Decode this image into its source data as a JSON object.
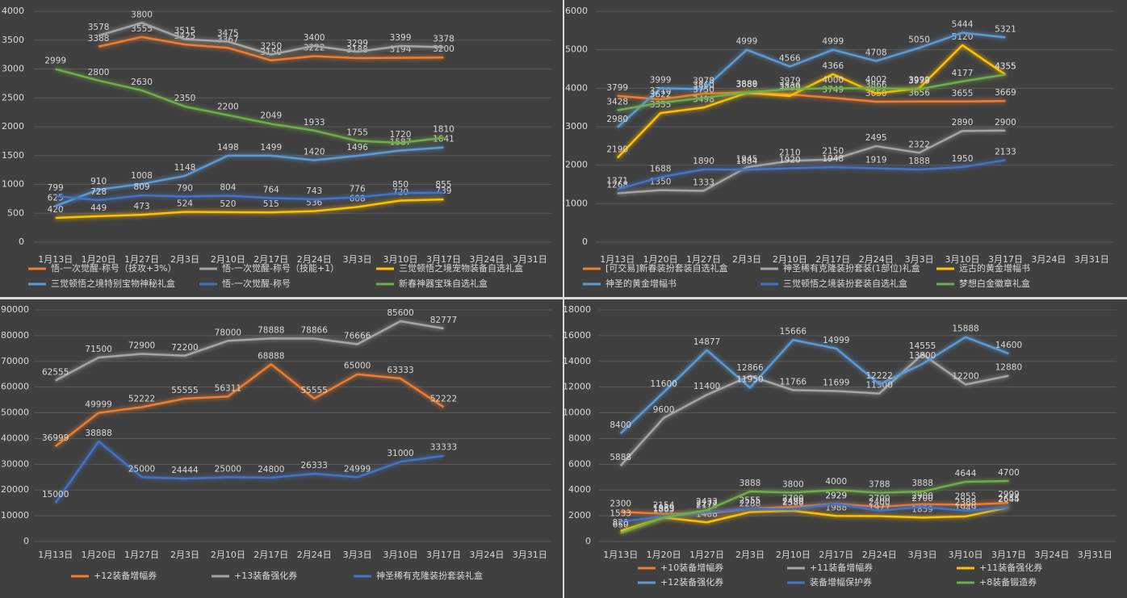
{
  "chart_data": [
    {
      "type": "line",
      "categories": [
        "1月13日",
        "1月20日",
        "1月27日",
        "2月3日",
        "2月10日",
        "2月17日",
        "2月24日",
        "3月3日",
        "3月10日",
        "3月17日",
        "3月24日",
        "3月31日"
      ],
      "ylim": [
        0,
        4000
      ],
      "yticks": [
        0,
        500,
        1000,
        1500,
        2000,
        2500,
        3000,
        3500,
        4000
      ],
      "grid": true,
      "series": [
        {
          "name": "悟-一次觉醒-称号（技攻+3%）",
          "color": "#ed7d31",
          "values": [
            null,
            3388,
            3555,
            3425,
            3367,
            3150,
            3222,
            3188,
            3194,
            3200,
            null,
            null
          ]
        },
        {
          "name": "悟-一次觉醒-称号（技能+1）",
          "color": "#a5a5a5",
          "values": [
            null,
            3578,
            3800,
            3515,
            3475,
            3250,
            3400,
            3299,
            3399,
            3378,
            null,
            null
          ]
        },
        {
          "name": "三觉顿悟之境宠物装备自选礼盒",
          "color": "#ffc000",
          "values": [
            420,
            449,
            473,
            524,
            520,
            515,
            536,
            608,
            720,
            739,
            null,
            null
          ]
        },
        {
          "name": "三觉顿悟之境特别宝物神秘礼盒",
          "color": "#5b9bd5",
          "values": [
            625,
            910,
            1008,
            1148,
            1498,
            1499,
            1420,
            1496,
            1587,
            1641,
            null,
            null
          ]
        },
        {
          "name": "悟-一次觉醒-称号",
          "color": "#4472c4",
          "values": [
            799,
            728,
            809,
            790,
            804,
            764,
            743,
            776,
            850,
            855,
            null,
            null
          ]
        },
        {
          "name": "新春神器宝珠自选礼盒",
          "color": "#70ad47",
          "values": [
            2999,
            2800,
            2630,
            2350,
            2200,
            2049,
            1933,
            1755,
            1720,
            1810,
            null,
            null
          ]
        }
      ]
    },
    {
      "type": "line",
      "categories": [
        "1月13日",
        "1月20日",
        "1月27日",
        "2月3日",
        "2月10日",
        "2月17日",
        "2月24日",
        "3月3日",
        "3月10日",
        "3月17日",
        "3月24日",
        "3月31日"
      ],
      "ylim": [
        0,
        6000
      ],
      "yticks": [
        0,
        1000,
        2000,
        3000,
        4000,
        5000,
        6000
      ],
      "grid": true,
      "series": [
        {
          "name": "[可交易]新春装扮套装自选礼盒",
          "color": "#ed7d31",
          "values": [
            3799,
            3710,
            3860,
            3888,
            3839,
            3749,
            3650,
            3656,
            3655,
            3669,
            null,
            null
          ]
        },
        {
          "name": "神圣稀有克隆装扮套装(1部位)礼盒",
          "color": "#a5a5a5",
          "values": [
            1268,
            1350,
            1333,
            1945,
            2110,
            2150,
            2495,
            2322,
            2890,
            2900,
            null,
            null
          ]
        },
        {
          "name": "远古的黄金增幅书",
          "color": "#ffc000",
          "values": [
            2190,
            3355,
            3498,
            3880,
            3799,
            4366,
            3866,
            3999,
            5120,
            4355,
            null,
            null
          ]
        },
        {
          "name": "神圣的黄金增幅书",
          "color": "#5b9bd5",
          "values": [
            2980,
            3999,
            3978,
            4999,
            4566,
            4999,
            4708,
            5050,
            5444,
            5321,
            null,
            null
          ]
        },
        {
          "name": "三觉顿悟之境装扮套装自选礼盒",
          "color": "#4472c4",
          "values": [
            1371,
            1688,
            1890,
            1884,
            1920,
            1948,
            1919,
            1888,
            1950,
            2133,
            null,
            null
          ]
        },
        {
          "name": "梦想白金徽章礼盒",
          "color": "#70ad47",
          "values": [
            3428,
            3622,
            3750,
            3889,
            3979,
            4000,
            4002,
            3979,
            4177,
            4355,
            null,
            null
          ]
        }
      ]
    },
    {
      "type": "line",
      "categories": [
        "1月13日",
        "1月20日",
        "1月27日",
        "2月3日",
        "2月10日",
        "2月17日",
        "2月24日",
        "3月3日",
        "3月10日",
        "3月17日",
        "3月24日",
        "3月31日"
      ],
      "ylim": [
        0,
        90000
      ],
      "yticks": [
        0,
        10000,
        20000,
        30000,
        40000,
        50000,
        60000,
        70000,
        80000,
        90000
      ],
      "grid": true,
      "series": [
        {
          "name": "+12装备增幅券",
          "color": "#ed7d31",
          "values": [
            36999,
            49999,
            52222,
            55555,
            56311,
            68888,
            55555,
            65000,
            63333,
            52222,
            null,
            null
          ]
        },
        {
          "name": "+13装备强化券",
          "color": "#a5a5a5",
          "values": [
            62555,
            71500,
            72900,
            72200,
            78000,
            78888,
            78866,
            76666,
            85600,
            82777,
            null,
            null
          ]
        },
        {
          "name": "神圣稀有克隆装扮套装礼盒",
          "color": "#4472c4",
          "values": [
            15000,
            38888,
            25000,
            24444,
            25000,
            24800,
            26333,
            24999,
            31000,
            33333,
            null,
            null
          ]
        }
      ]
    },
    {
      "type": "line",
      "categories": [
        "1月13日",
        "1月20日",
        "1月27日",
        "2月3日",
        "2月10日",
        "2月17日",
        "2月24日",
        "3月3日",
        "3月10日",
        "3月17日",
        "3月24日",
        "3月31日"
      ],
      "ylim": [
        0,
        18000
      ],
      "yticks": [
        0,
        2000,
        4000,
        6000,
        8000,
        10000,
        12000,
        14000,
        16000,
        18000
      ],
      "grid": true,
      "series": [
        {
          "name": "+10装备增幅券",
          "color": "#ed7d31",
          "values": [
            2300,
            2154,
            2178,
            2555,
            2700,
            2929,
            2700,
            2900,
            2855,
            2999,
            null,
            null
          ]
        },
        {
          "name": "+11装备增幅券",
          "color": "#a5a5a5",
          "values": [
            5888,
            9600,
            11400,
            12866,
            11766,
            11699,
            11500,
            14555,
            12200,
            12880,
            null,
            null
          ]
        },
        {
          "name": "+11装备强化券",
          "color": "#ffc000",
          "values": [
            820,
            1865,
            1488,
            2288,
            2388,
            1988,
            1977,
            1859,
            1949,
            2655,
            null,
            null
          ]
        },
        {
          "name": "+12装备强化券",
          "color": "#5b9bd5",
          "values": [
            8400,
            11600,
            14877,
            11950,
            15666,
            14999,
            12222,
            13800,
            15888,
            14600,
            null,
            null
          ]
        },
        {
          "name": "装备增幅保护券",
          "color": "#4472c4",
          "values": [
            1533,
            1959,
            2277,
            2555,
            2490,
            2929,
            2400,
            2700,
            2388,
            2644,
            null,
            null
          ]
        },
        {
          "name": "+8装备锻造券",
          "color": "#70ad47",
          "values": [
            650,
            1865,
            2433,
            3888,
            3800,
            4000,
            3788,
            3888,
            4644,
            4700,
            null,
            null
          ]
        }
      ]
    }
  ]
}
